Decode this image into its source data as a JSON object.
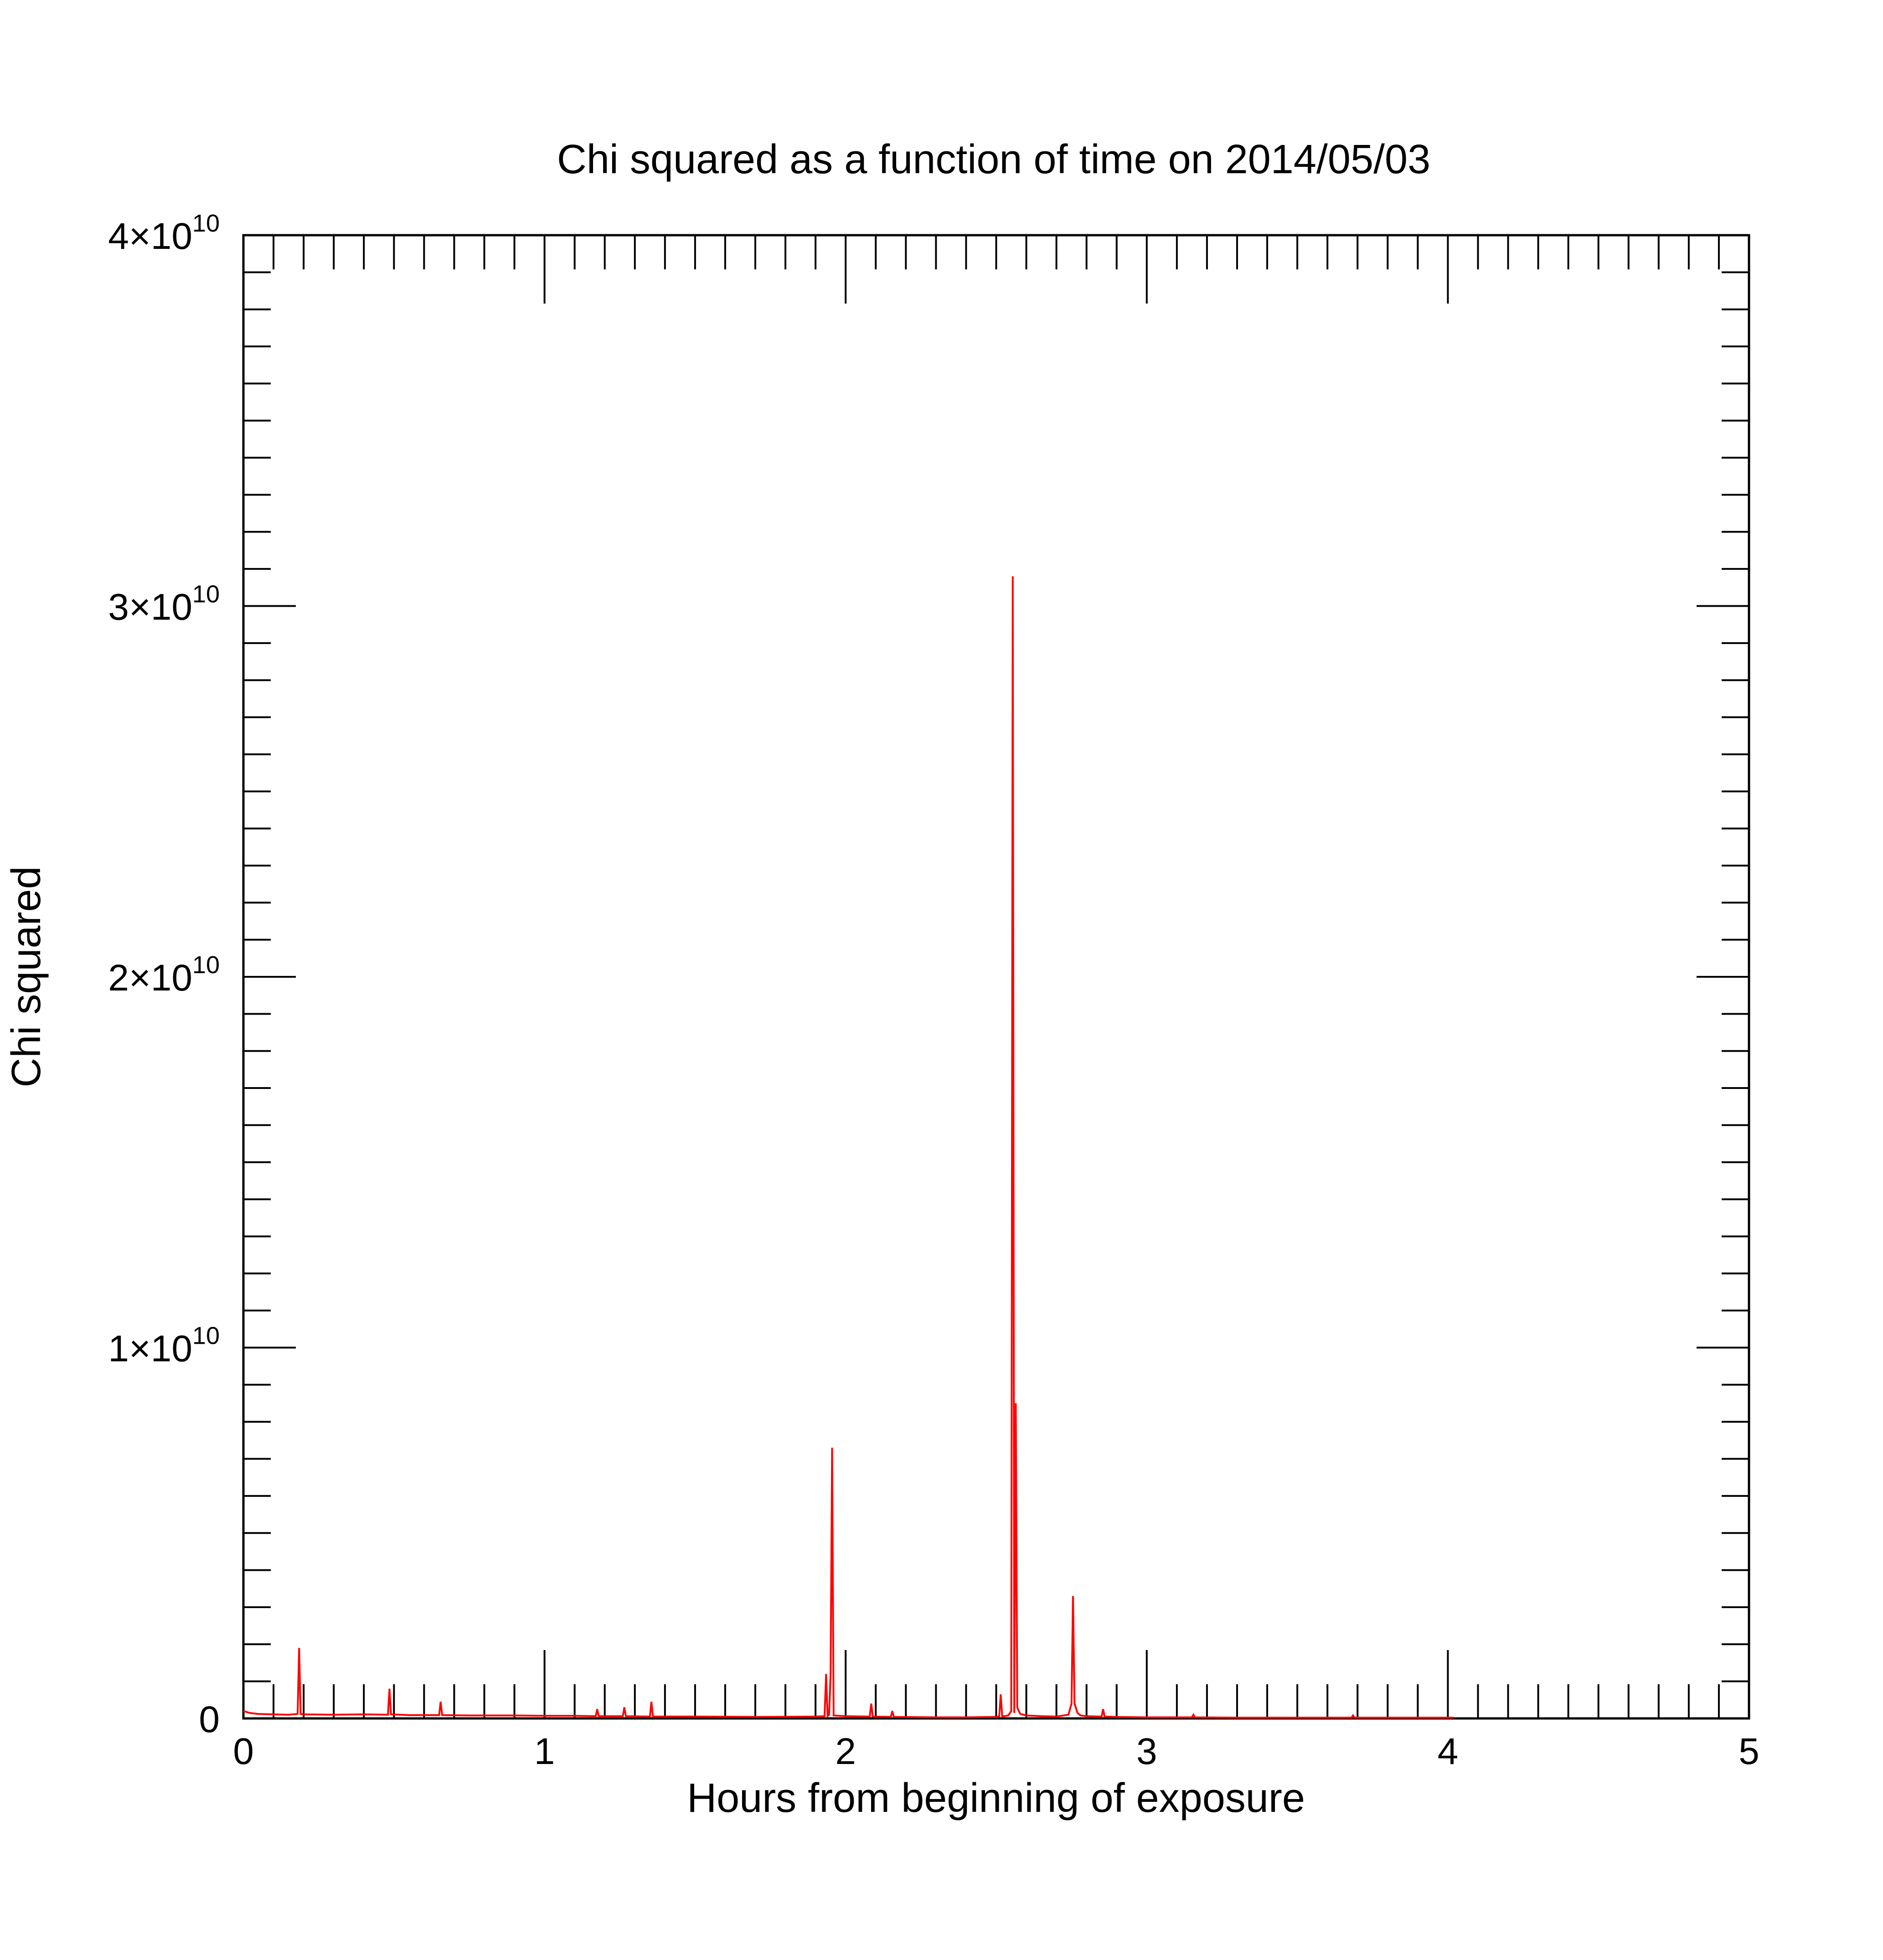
{
  "chart_data": {
    "type": "line",
    "title": "Chi squared as a function of time on 2014/05/03",
    "xlabel": "Hours from beginning of exposure",
    "ylabel": "Chi squared",
    "xlim": [
      0,
      5
    ],
    "ylim": [
      0,
      40000000000
    ],
    "x_ticks": [
      {
        "value": 0,
        "label": "0"
      },
      {
        "value": 1,
        "label": "1"
      },
      {
        "value": 2,
        "label": "2"
      },
      {
        "value": 3,
        "label": "3"
      },
      {
        "value": 4,
        "label": "4"
      },
      {
        "value": 5,
        "label": "5"
      }
    ],
    "y_ticks": [
      {
        "value": 0,
        "mantissa": "0",
        "exponent": ""
      },
      {
        "value": 10000000000,
        "mantissa": "1×10",
        "exponent": "10"
      },
      {
        "value": 20000000000,
        "mantissa": "2×10",
        "exponent": "10"
      },
      {
        "value": 30000000000,
        "mantissa": "3×10",
        "exponent": "10"
      },
      {
        "value": 40000000000,
        "mantissa": "4×10",
        "exponent": "10"
      }
    ],
    "x_minor_step": 0.1,
    "y_minor_step": 1000000000,
    "grid": false,
    "series": [
      {
        "color": "#ff0000",
        "x": [
          0.0,
          0.02,
          0.05,
          0.1,
          0.15,
          0.18,
          0.185,
          0.19,
          0.2,
          0.3,
          0.4,
          0.48,
          0.485,
          0.49,
          0.55,
          0.65,
          0.655,
          0.66,
          0.75,
          0.9,
          1.0,
          1.1,
          1.17,
          1.175,
          1.18,
          1.26,
          1.265,
          1.27,
          1.35,
          1.355,
          1.36,
          1.5,
          1.7,
          1.9,
          1.93,
          1.935,
          1.94,
          1.945,
          1.95,
          1.955,
          1.96,
          2.0,
          2.08,
          2.085,
          2.09,
          2.15,
          2.155,
          2.16,
          2.3,
          2.4,
          2.5,
          2.51,
          2.515,
          2.52,
          2.54,
          2.55,
          2.555,
          2.56,
          2.565,
          2.57,
          2.575,
          2.58,
          2.6,
          2.65,
          2.7,
          2.74,
          2.75,
          2.755,
          2.76,
          2.77,
          2.78,
          2.8,
          2.85,
          2.855,
          2.86,
          2.9,
          3.0,
          3.15,
          3.155,
          3.16,
          3.3,
          3.5,
          3.68,
          3.685,
          3.69,
          3.8,
          4.0,
          4.02
        ],
        "y": [
          200000000,
          150000000,
          120000000,
          110000000,
          100000000,
          120000000,
          1900000000,
          120000000,
          110000000,
          100000000,
          110000000,
          100000000,
          800000000,
          110000000,
          90000000,
          90000000,
          450000000,
          90000000,
          80000000,
          80000000,
          70000000,
          70000000,
          60000000,
          250000000,
          60000000,
          60000000,
          300000000,
          60000000,
          50000000,
          450000000,
          50000000,
          50000000,
          40000000,
          50000000,
          60000000,
          1200000000,
          60000000,
          100000000,
          1200000000,
          7300000000,
          80000000,
          60000000,
          50000000,
          400000000,
          50000000,
          40000000,
          200000000,
          40000000,
          30000000,
          30000000,
          40000000,
          50000000,
          650000000,
          50000000,
          80000000,
          200000000,
          30800000000,
          150000000,
          8500000000,
          300000000,
          200000000,
          120000000,
          80000000,
          60000000,
          50000000,
          100000000,
          400000000,
          3300000000,
          400000000,
          150000000,
          80000000,
          60000000,
          50000000,
          250000000,
          50000000,
          40000000,
          30000000,
          30000000,
          100000000,
          30000000,
          20000000,
          20000000,
          20000000,
          80000000,
          20000000,
          20000000,
          20000000,
          20000000
        ]
      }
    ]
  }
}
